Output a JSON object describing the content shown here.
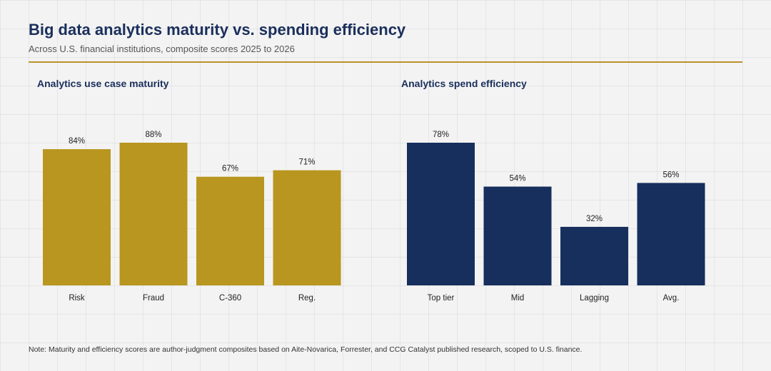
{
  "title": "Big data analytics maturity vs. spending efficiency",
  "subtitle": "Across U.S. financial institutions, composite scores 2025 to 2026",
  "note": "Note: Maturity and efficiency scores are author-judgment composites based on Aite-Novarica, Forrester, and CCG Catalyst published research, scoped to U.S. finance.",
  "colors": {
    "title": "#1a2f5c",
    "accent_rule": "#b8922b",
    "maturity_bars": "#b8961f",
    "efficiency_bars": "#172f5d"
  },
  "chart_data": [
    {
      "type": "bar",
      "title": "Analytics use case maturity",
      "categories": [
        "Risk",
        "Fraud",
        "C-360",
        "Reg."
      ],
      "values": [
        84,
        88,
        67,
        71
      ],
      "value_labels": [
        "84%",
        "88%",
        "67%",
        "71%"
      ],
      "ylim": [
        0,
        88
      ],
      "color": "#b8961f",
      "grid": false,
      "legend": "none"
    },
    {
      "type": "bar",
      "title": "Analytics spend efficiency",
      "categories": [
        "Top tier",
        "Mid",
        "Lagging",
        "Avg."
      ],
      "values": [
        78,
        54,
        32,
        56
      ],
      "value_labels": [
        "78%",
        "54%",
        "32%",
        "56%"
      ],
      "ylim": [
        0,
        78
      ],
      "color": "#172f5d",
      "grid": false,
      "legend": "none"
    }
  ]
}
